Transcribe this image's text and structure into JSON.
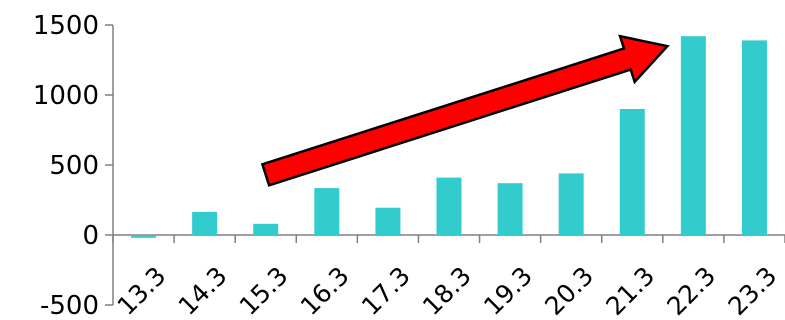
{
  "chart_data": {
    "type": "bar",
    "categories": [
      "13.3",
      "14.3",
      "15.3",
      "16.3",
      "17.3",
      "18.3",
      "19.3",
      "20.3",
      "21.3",
      "22.3",
      "23.3"
    ],
    "series": [
      {
        "values": [
          -20,
          165,
          80,
          335,
          195,
          410,
          370,
          440,
          900,
          1420,
          1390
        ]
      }
    ],
    "ylim": [
      -500,
      1500
    ],
    "yticks": [
      -500,
      0,
      500,
      1000,
      1500
    ],
    "grid": false,
    "legend": "none",
    "colors": {
      "bar": "#33CCCC",
      "arrow_fill": "#FF0000",
      "arrow_stroke": "#000000",
      "axis": "#808080"
    },
    "annotations": [
      {
        "type": "arrow",
        "shape": "block-arrow",
        "from_category": "15.3",
        "from_value": 430,
        "to_category": "22.3",
        "to_value": 1420
      }
    ]
  }
}
